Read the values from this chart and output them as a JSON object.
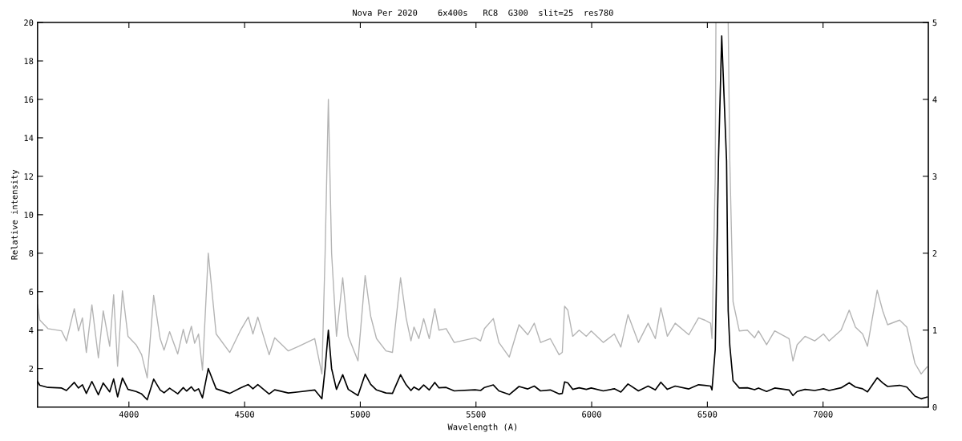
{
  "chart_data": {
    "type": "line",
    "title": "Nova Per 2020    6x400s   RC8  G300  slit=25  res780",
    "xlabel": "Wavelength (A)",
    "ylabel": "Relative intensity",
    "x": [
      3605,
      3615,
      3650,
      3709,
      3730,
      3764,
      3782,
      3799,
      3816,
      3840,
      3868,
      3889,
      3917,
      3934,
      3951,
      3972,
      3996,
      4031,
      4055,
      4079,
      4107,
      4135,
      4152,
      4176,
      4211,
      4235,
      4249,
      4270,
      4284,
      4301,
      4318,
      4343,
      4377,
      4436,
      4481,
      4516,
      4536,
      4557,
      4606,
      4630,
      4689,
      4734,
      4803,
      4834,
      4848,
      4862,
      4876,
      4897,
      4924,
      4948,
      4990,
      5021,
      5045,
      5070,
      5111,
      5139,
      5174,
      5198,
      5219,
      5232,
      5253,
      5274,
      5298,
      5322,
      5340,
      5371,
      5406,
      5496,
      5520,
      5537,
      5575,
      5599,
      5644,
      5686,
      5724,
      5752,
      5779,
      5821,
      5859,
      5873,
      5883,
      5897,
      5918,
      5946,
      5977,
      5998,
      6050,
      6098,
      6126,
      6157,
      6202,
      6244,
      6275,
      6299,
      6327,
      6361,
      6420,
      6462,
      6489,
      6514,
      6520,
      6534,
      6537,
      6548,
      6562,
      6583,
      6590,
      6597,
      6611,
      6638,
      6673,
      6704,
      6721,
      6756,
      6791,
      6853,
      6870,
      6888,
      6922,
      6964,
      7002,
      7026,
      7078,
      7113,
      7140,
      7171,
      7192,
      7234,
      7258,
      7279,
      7331,
      7362,
      7397,
      7424,
      7449
    ],
    "series": [
      {
        "color": "#000000",
        "axis": "y",
        "values": [
          1.33,
          1.13,
          1.02,
          0.99,
          0.86,
          1.28,
          0.99,
          1.16,
          0.71,
          1.33,
          0.64,
          1.25,
          0.79,
          1.46,
          0.53,
          1.51,
          0.92,
          0.81,
          0.68,
          0.38,
          1.45,
          0.89,
          0.74,
          0.98,
          0.69,
          1.01,
          0.83,
          1.05,
          0.83,
          0.95,
          0.48,
          2.0,
          0.95,
          0.71,
          0.99,
          1.17,
          0.95,
          1.17,
          0.68,
          0.9,
          0.73,
          0.79,
          0.89,
          0.43,
          2.0,
          4.0,
          2.0,
          0.92,
          1.68,
          0.92,
          0.6,
          1.71,
          1.18,
          0.89,
          0.73,
          0.71,
          1.68,
          1.16,
          0.86,
          1.04,
          0.89,
          1.15,
          0.89,
          1.28,
          1.0,
          1.02,
          0.84,
          0.9,
          0.86,
          1.02,
          1.15,
          0.84,
          0.65,
          1.07,
          0.94,
          1.09,
          0.84,
          0.89,
          0.68,
          0.71,
          1.31,
          1.26,
          0.92,
          1.0,
          0.92,
          0.99,
          0.84,
          0.95,
          0.78,
          1.2,
          0.84,
          1.09,
          0.89,
          1.29,
          0.92,
          1.09,
          0.94,
          1.16,
          1.13,
          1.09,
          0.89,
          3.0,
          5.0,
          12.8,
          19.3,
          12.8,
          5.0,
          3.2,
          1.37,
          0.99,
          1.0,
          0.9,
          0.99,
          0.81,
          0.99,
          0.89,
          0.6,
          0.81,
          0.92,
          0.86,
          0.95,
          0.86,
          1.0,
          1.26,
          1.04,
          0.95,
          0.79,
          1.52,
          1.25,
          1.07,
          1.13,
          1.04,
          0.57,
          0.43,
          0.52
        ]
      },
      {
        "color": "#b4b4b4",
        "axis": "y2",
        "values": [
          1.33,
          1.13,
          1.02,
          0.99,
          0.86,
          1.28,
          0.99,
          1.16,
          0.71,
          1.33,
          0.64,
          1.25,
          0.79,
          1.46,
          0.53,
          1.51,
          0.92,
          0.81,
          0.68,
          0.38,
          1.45,
          0.89,
          0.74,
          0.98,
          0.69,
          1.01,
          0.83,
          1.05,
          0.83,
          0.95,
          0.48,
          2.0,
          0.95,
          0.71,
          0.99,
          1.17,
          0.95,
          1.17,
          0.68,
          0.9,
          0.73,
          0.79,
          0.89,
          0.43,
          2.0,
          4.0,
          2.0,
          0.92,
          1.68,
          0.92,
          0.6,
          1.71,
          1.18,
          0.89,
          0.73,
          0.71,
          1.68,
          1.16,
          0.86,
          1.04,
          0.89,
          1.15,
          0.89,
          1.28,
          1.0,
          1.02,
          0.84,
          0.9,
          0.86,
          1.02,
          1.15,
          0.84,
          0.65,
          1.07,
          0.94,
          1.09,
          0.84,
          0.89,
          0.68,
          0.71,
          1.31,
          1.26,
          0.92,
          1.0,
          0.92,
          0.99,
          0.84,
          0.95,
          0.78,
          1.2,
          0.84,
          1.09,
          0.89,
          1.29,
          0.92,
          1.09,
          0.94,
          1.16,
          1.13,
          1.09,
          0.89,
          3.0,
          5.0,
          null,
          null,
          null,
          5.0,
          3.2,
          1.37,
          0.99,
          1.0,
          0.9,
          0.99,
          0.81,
          0.99,
          0.89,
          0.6,
          0.81,
          0.92,
          0.86,
          0.95,
          0.86,
          1.0,
          1.26,
          1.04,
          0.95,
          0.79,
          1.52,
          1.25,
          1.07,
          1.13,
          1.04,
          0.57,
          0.43,
          0.52
        ]
      }
    ],
    "xlim": [
      3605,
      7455
    ],
    "xticks": [
      4000,
      4500,
      5000,
      5500,
      6000,
      6500,
      7000
    ],
    "ylim": [
      0,
      20
    ],
    "yticks": [
      2,
      4,
      6,
      8,
      10,
      12,
      14,
      16,
      18,
      20
    ],
    "y2lim": [
      0,
      5
    ],
    "y2ticks": [
      0,
      1,
      2,
      3,
      4,
      5
    ],
    "grid": false
  }
}
